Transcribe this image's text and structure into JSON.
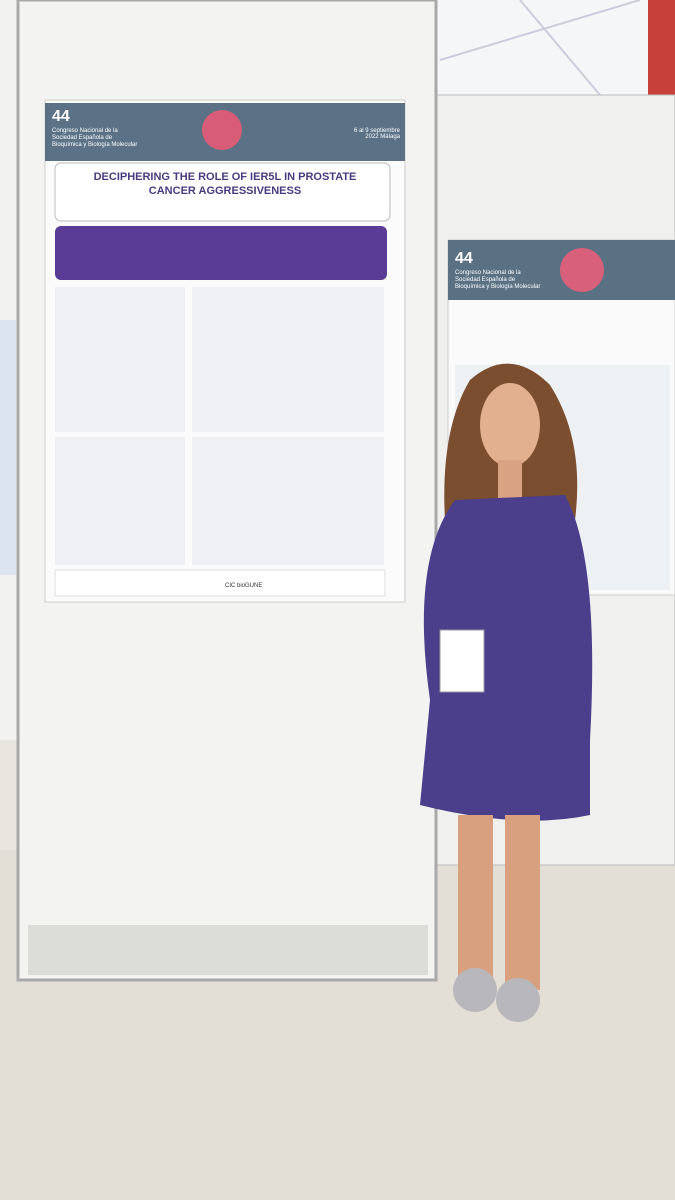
{
  "poster_left": {
    "edition": "44",
    "congress": "Congreso Nacional de la Sociedad Española de Bioquímica y Biología Molecular",
    "dates": "6 al 9 septiembre 2022 Málaga",
    "title": "DECIPHERING THE ROLE OF IER5L IN PROSTATE CANCER AGGRESSIVENESS",
    "sponsor": "CIC bioGUNE"
  },
  "poster_right": {
    "edition": "44",
    "congress": "Congreso Nacional de la Sociedad Española de Bioquímica y Biología Molecular"
  }
}
